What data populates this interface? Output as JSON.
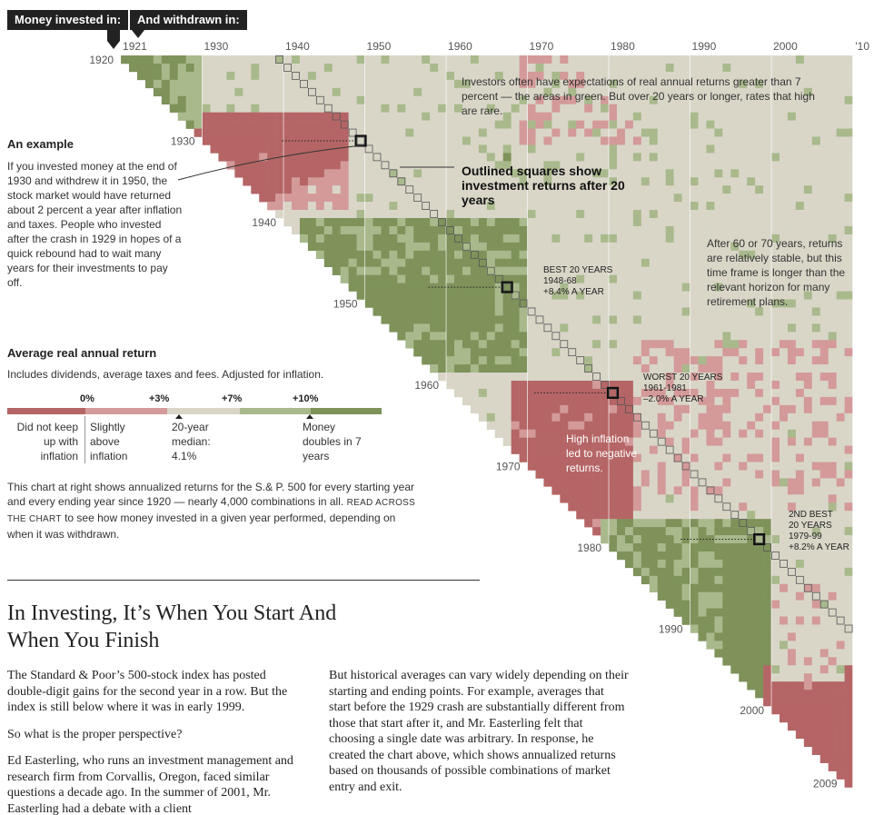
{
  "header": {
    "invested_label": "Money invested in:",
    "withdrawn_label": "And withdrawn in:"
  },
  "chart_data": {
    "type": "heatmap",
    "x_axis_label": "And withdrawn in:",
    "y_axis_label": "Money invested in:",
    "x_range": [
      1921,
      2010
    ],
    "y_range": [
      1920,
      2009
    ],
    "x_tick_labels": [
      "1921",
      "1930",
      "1940",
      "1950",
      "1960",
      "1970",
      "1980",
      "1990",
      "2000",
      "'10"
    ],
    "y_tick_labels": [
      "1920",
      "1930",
      "1940",
      "1950",
      "1960",
      "1970",
      "1980",
      "1990",
      "2000",
      "2009"
    ],
    "color_scale": {
      "thresholds_pct": [
        0,
        3,
        7,
        10
      ],
      "threshold_labels": [
        "0%",
        "+3%",
        "+7%",
        "+10%"
      ],
      "bin_labels": [
        "Did not keep up with inflation",
        "Slightly above inflation",
        "20-year median: 4.1%",
        "Money doubles in 7 years"
      ],
      "colors": [
        "#b56565",
        "#d39a99",
        "#d9d6c8",
        "#a9b98c",
        "#7e925a"
      ]
    },
    "highlighted_20_year_periods": [
      {
        "label": "BEST 20 YEARS",
        "period": "1948-68",
        "return": "+8.4% A YEAR",
        "start": 1948,
        "end": 1968,
        "value_pct": 8.4
      },
      {
        "label": "WORST 20 YEARS",
        "period": "1961-1981",
        "return": "–2.0% A YEAR",
        "start": 1961,
        "end": 1981,
        "value_pct": -2.0
      },
      {
        "label": "2ND BEST 20 YEARS",
        "period": "1979-99",
        "return": "+8.2% A YEAR",
        "start": 1979,
        "end": 1999,
        "value_pct": 8.2
      },
      {
        "label": "An example",
        "period": "1930-1950",
        "return": "about 2 percent a year",
        "start": 1930,
        "end": 1950,
        "value_pct": 2.0
      }
    ]
  },
  "annotations": {
    "expectations": "Investors often have expectations of real annual returns greater than 7 percent — the areas in green. But over 20 years or longer, rates that high are rare.",
    "outlined": "Outlined squares show investment returns after 20 years",
    "stable": "After 60 or 70 years, returns are relatively stable, but this time frame is longer than the relevant horizon for many retirement plans.",
    "high_inflation": "High inflation led to negative returns.",
    "best_label": "BEST 20 YEARS",
    "best_period": "1948-68",
    "best_return": "+8.4% A YEAR",
    "worst_label": "WORST 20 YEARS",
    "worst_period": "1961-1981",
    "worst_return": "–2.0% A YEAR",
    "second_label_1": "2ND BEST",
    "second_label_2": "20 YEARS",
    "second_period": "1979-99",
    "second_return": "+8.2% A YEAR"
  },
  "example": {
    "heading": "An example",
    "body": "If you invested money at the end of 1930 and withdrew it in 1950, the stock market would have returned about 2 percent a year after inflation and taxes. People who invested after the crash in 1929 in hopes of a quick rebound had to wait many years for their investments to pay off."
  },
  "legend": {
    "heading": "Average real annual return",
    "subheading": "Includes dividends, average taxes and fees. Adjusted for inflation.",
    "t0": "0%",
    "t3": "+3%",
    "t7": "+7%",
    "t10": "+10%",
    "b1": "Did not keep up with inflation",
    "b2": "Slightly above inflation",
    "b3": "20-year median: 4.1%",
    "b4": "Money doubles in 7 years"
  },
  "intro": {
    "text_before": "This chart at right shows annualized returns for the S.& P. 500 for every starting year and every ending year since 1920 — nearly 4,000 combinations in all.",
    "read_across": "Read across the chart",
    "text_after": "to see how money invested in a given year performed, depending on when it was withdrawn."
  },
  "article": {
    "headline": "In Investing, It’s When You Start And When You Finish",
    "col1_p1": "The Standard & Poor’s 500-stock index has posted double-digit gains for the second year in a row. But the index is still below where it was in early 1999.",
    "col1_p2": "So what is the proper perspective?",
    "col1_p3": "Ed Easterling, who runs an investment management and research firm from Corvallis, Oregon, faced similar questions a decade ago. In the summer of 2001, Mr. Easterling had a debate with a client",
    "col2_p1": "But historical averages can vary widely depending on their starting and ending points. For example, averages that start before the 1929 crash are substantially different from those that start after it, and Mr. Easterling felt that choosing a single date was arbitrary. In response, he created the chart above, which shows annualized returns based on thousands of possible combinations of market entry and exit."
  }
}
